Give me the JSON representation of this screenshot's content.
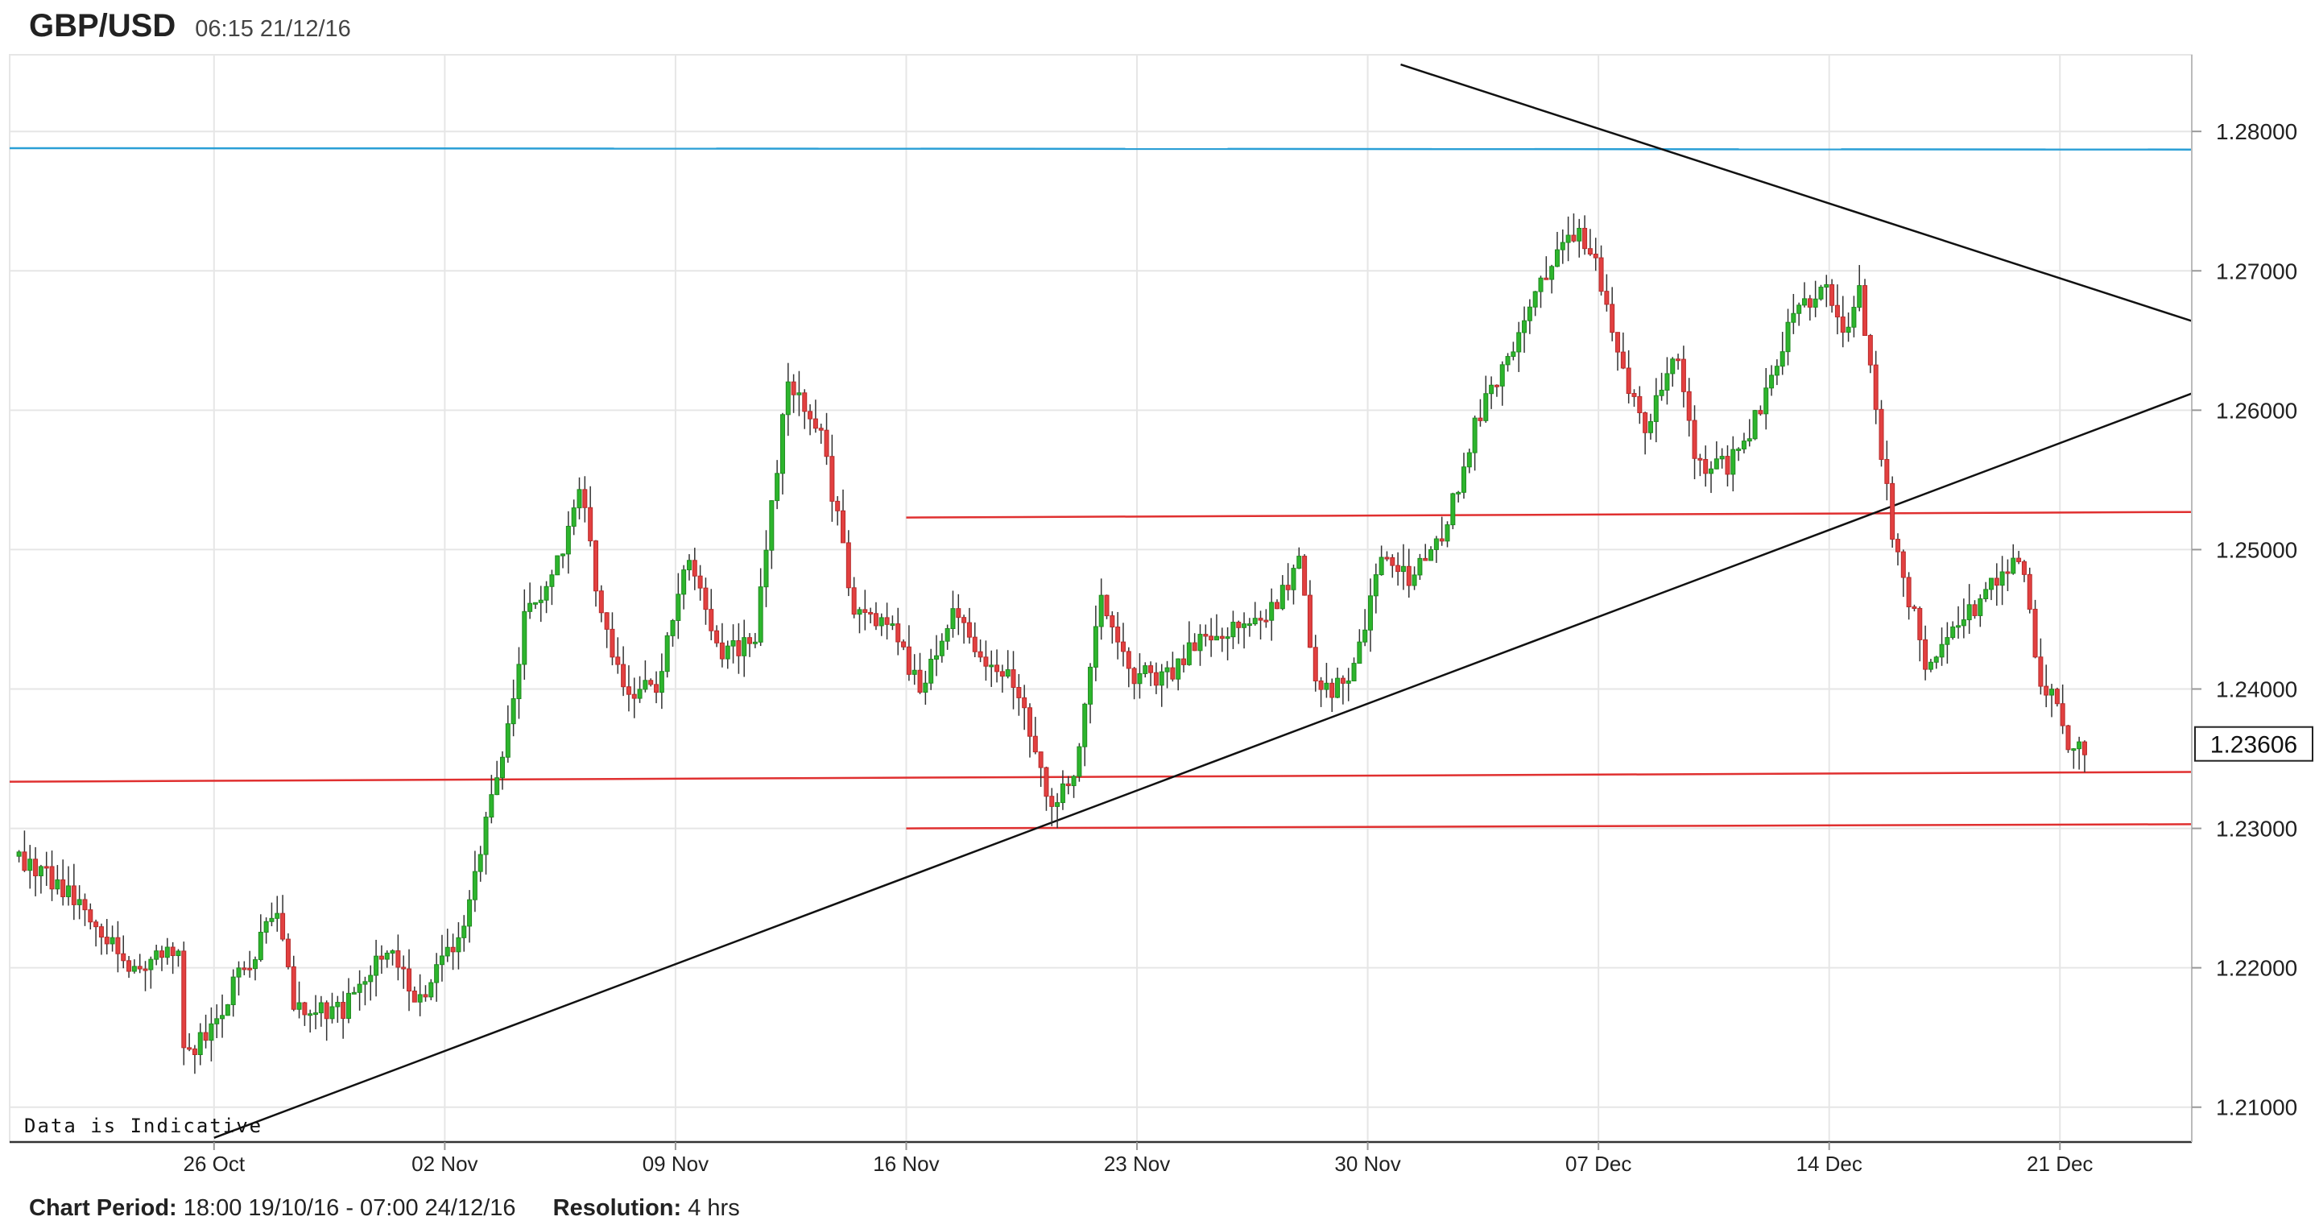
{
  "header": {
    "symbol": "GBP/USD",
    "timestamp": "06:15 21/12/16"
  },
  "footer": {
    "period_label": "Chart Period:",
    "period_value": "18:00 19/10/16 - 07:00 24/12/16",
    "resolution_label": "Resolution:",
    "resolution_value": "4 hrs"
  },
  "colors": {
    "up": "#2db52d",
    "down": "#e24040",
    "wick": "#333333",
    "grid": "#e6e6e6",
    "support": "#e03030",
    "resistance_blue": "#2a9fd6",
    "trend": "#111111"
  },
  "chart_data": {
    "type": "candlestick",
    "title": "GBP/USD",
    "watermark": "Data is Indicative",
    "ylim": [
      1.2075,
      1.2855
    ],
    "y_ticks": [
      "1.21000",
      "1.22000",
      "1.23000",
      "1.24000",
      "1.25000",
      "1.26000",
      "1.27000",
      "1.28000"
    ],
    "x_ticks": [
      {
        "label": "26 Oct",
        "day": 7
      },
      {
        "label": "02 Nov",
        "day": 14
      },
      {
        "label": "09 Nov",
        "day": 21
      },
      {
        "label": "16 Nov",
        "day": 28
      },
      {
        "label": "23 Nov",
        "day": 35
      },
      {
        "label": "30 Nov",
        "day": 42
      },
      {
        "label": "07 Dec",
        "day": 49
      },
      {
        "label": "14 Dec",
        "day": 56
      },
      {
        "label": "21 Dec",
        "day": 63
      }
    ],
    "current_price": "1.23606",
    "xlim_days": [
      0.8,
      67.0
    ],
    "anchors": [
      [
        1.0,
        1.228
      ],
      [
        3.0,
        1.225
      ],
      [
        4.5,
        1.22
      ],
      [
        6.0,
        1.2215
      ],
      [
        6.2,
        1.213
      ],
      [
        7.5,
        1.218
      ],
      [
        9.0,
        1.224
      ],
      [
        9.5,
        1.217
      ],
      [
        11.0,
        1.217
      ],
      [
        12.5,
        1.222
      ],
      [
        13.2,
        1.217
      ],
      [
        14.5,
        1.222
      ],
      [
        15.5,
        1.232
      ],
      [
        16.0,
        1.237
      ],
      [
        16.5,
        1.245
      ],
      [
        17.5,
        1.249
      ],
      [
        18.2,
        1.255
      ],
      [
        18.7,
        1.247
      ],
      [
        19.5,
        1.24
      ],
      [
        20.5,
        1.24
      ],
      [
        21.5,
        1.25
      ],
      [
        22.5,
        1.242
      ],
      [
        23.5,
        1.244
      ],
      [
        24.5,
        1.262
      ],
      [
        25.5,
        1.258
      ],
      [
        26.5,
        1.246
      ],
      [
        27.5,
        1.245
      ],
      [
        28.5,
        1.24
      ],
      [
        29.5,
        1.246
      ],
      [
        30.5,
        1.242
      ],
      [
        31.5,
        1.24
      ],
      [
        32.5,
        1.231
      ],
      [
        33.2,
        1.234
      ],
      [
        34.0,
        1.247
      ],
      [
        35.0,
        1.241
      ],
      [
        36.0,
        1.241
      ],
      [
        37.0,
        1.244
      ],
      [
        38.0,
        1.244
      ],
      [
        39.0,
        1.245
      ],
      [
        40.0,
        1.249
      ],
      [
        40.5,
        1.24
      ],
      [
        41.5,
        1.24
      ],
      [
        42.5,
        1.249
      ],
      [
        43.5,
        1.248
      ],
      [
        44.5,
        1.252
      ],
      [
        45.5,
        1.26
      ],
      [
        46.5,
        1.264
      ],
      [
        47.0,
        1.268
      ],
      [
        47.5,
        1.27
      ],
      [
        48.5,
        1.273
      ],
      [
        49.0,
        1.271
      ],
      [
        49.5,
        1.265
      ],
      [
        50.5,
        1.259
      ],
      [
        51.5,
        1.264
      ],
      [
        52.0,
        1.256
      ],
      [
        53.0,
        1.256
      ],
      [
        54.0,
        1.26
      ],
      [
        55.0,
        1.267
      ],
      [
        56.0,
        1.269
      ],
      [
        56.5,
        1.265
      ],
      [
        57.0,
        1.269
      ],
      [
        57.5,
        1.26
      ],
      [
        58.0,
        1.251
      ],
      [
        59.0,
        1.242
      ],
      [
        60.0,
        1.244
      ],
      [
        61.0,
        1.248
      ],
      [
        62.0,
        1.249
      ],
      [
        62.5,
        1.24
      ],
      [
        63.0,
        1.239
      ],
      [
        63.4,
        1.235
      ],
      [
        63.8,
        1.236
      ]
    ],
    "support_lines": [
      {
        "d1": 0.8,
        "v1": 1.23335,
        "d2": 67.0,
        "v2": 1.23405
      },
      {
        "d1": 28.0,
        "v1": 1.2523,
        "d2": 67.0,
        "v2": 1.2527
      },
      {
        "d1": 28.0,
        "v1": 1.23,
        "d2": 67.0,
        "v2": 1.2303
      }
    ],
    "resistance_line": {
      "d1": 0.8,
      "v1": 1.2788,
      "d2": 67.0,
      "v2": 1.2787
    },
    "trend_lines": [
      {
        "d1": 7.0,
        "v1": 1.2078,
        "d2": 67.0,
        "v2": 1.2612
      },
      {
        "d1": 43.0,
        "v1": 1.2848,
        "d2": 67.0,
        "v2": 1.2664
      }
    ]
  }
}
